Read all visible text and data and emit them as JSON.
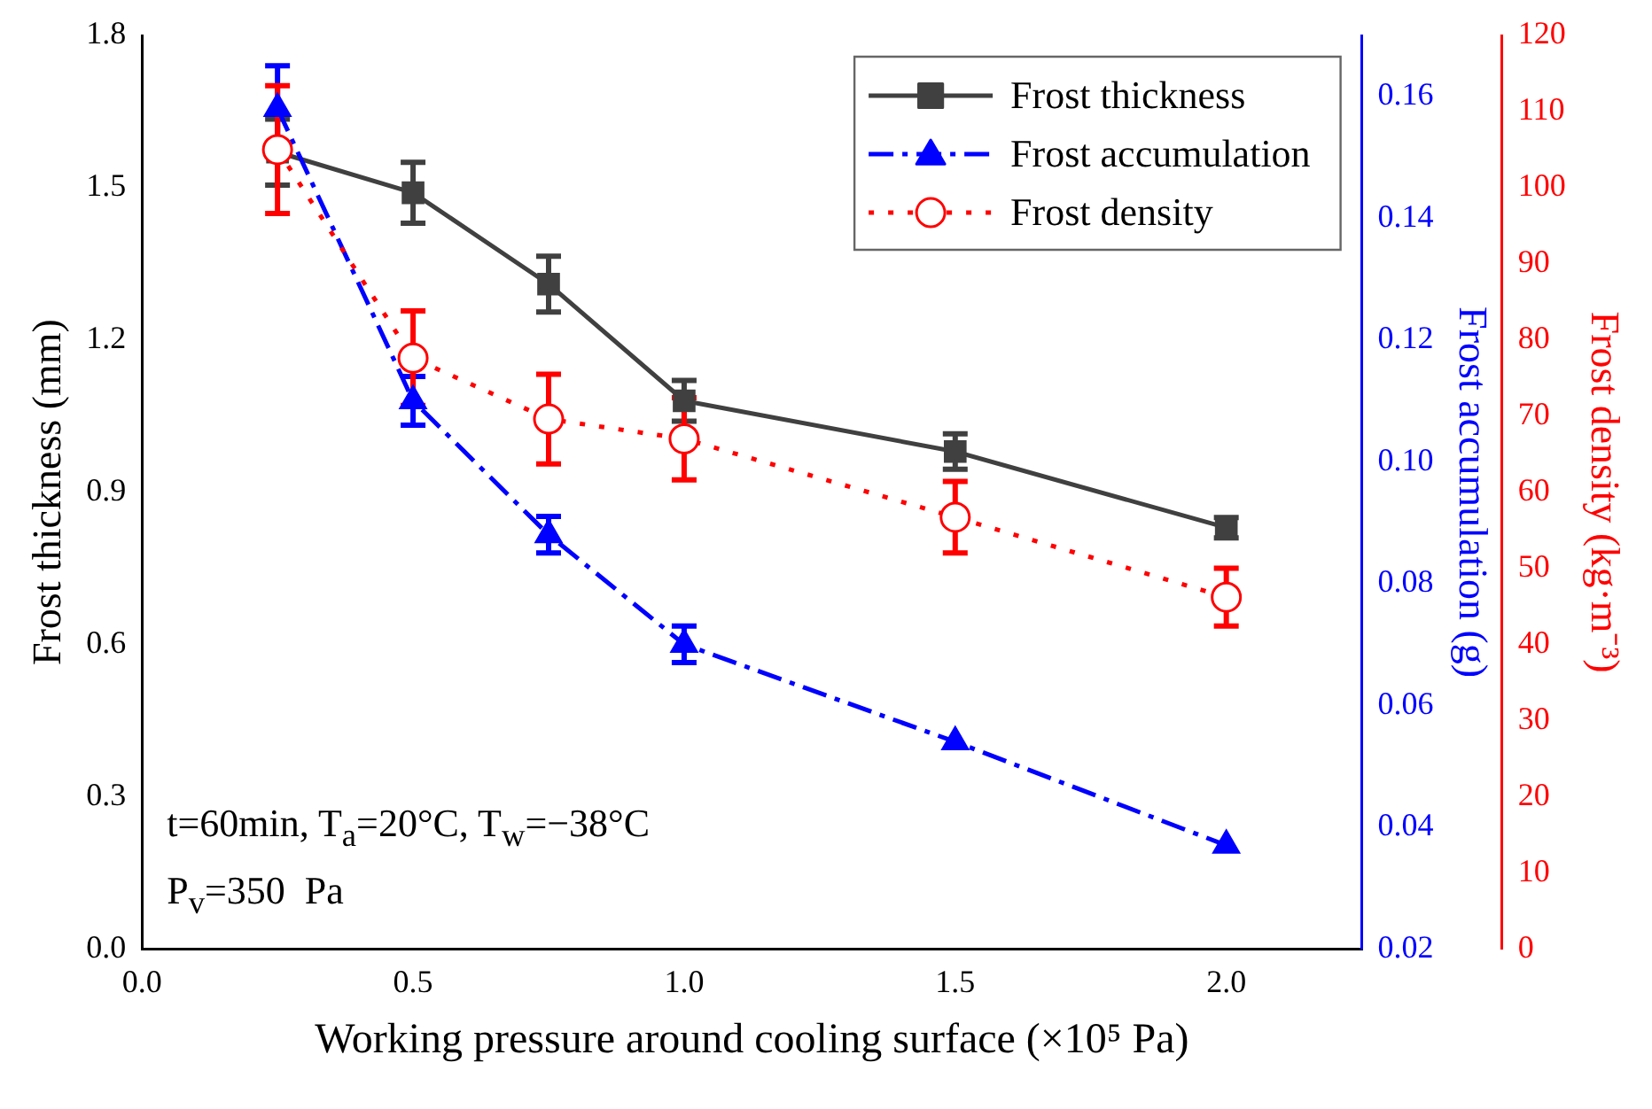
{
  "chart_data": {
    "type": "line",
    "xlabel": "Working pressure around cooling surface (×10⁵ Pa)",
    "ylabel": "Frost thickness (mm)",
    "y2label": "Frost accumulation (g)",
    "y3label": "Frost density (kg·m⁻³)",
    "x": [
      0.25,
      0.5,
      0.75,
      1.0,
      1.5,
      2.0
    ],
    "xlim": [
      0,
      2.25
    ],
    "xticks": [
      {
        "value": 0,
        "label": "0.0"
      },
      {
        "value": 0.5,
        "label": "0.5"
      },
      {
        "value": 1,
        "label": "1.0"
      },
      {
        "value": 1.5,
        "label": "1.5"
      },
      {
        "value": 2,
        "label": "2.0"
      }
    ],
    "ylim": [
      0,
      1.8
    ],
    "yticks": [
      {
        "value": 0,
        "label": "0.0"
      },
      {
        "value": 0.3,
        "label": "0.3"
      },
      {
        "value": 0.6,
        "label": "0.6"
      },
      {
        "value": 0.9,
        "label": "0.9"
      },
      {
        "value": 1.2,
        "label": "1.2"
      },
      {
        "value": 1.5,
        "label": "1.5"
      },
      {
        "value": 1.8,
        "label": "1.8"
      }
    ],
    "y2lim": [
      0.02,
      0.17
    ],
    "y2ticks": [
      {
        "value": 0.02,
        "label": "0.02"
      },
      {
        "value": 0.04,
        "label": "0.04"
      },
      {
        "value": 0.06,
        "label": "0.06"
      },
      {
        "value": 0.08,
        "label": "0.08"
      },
      {
        "value": 0.1,
        "label": "0.10"
      },
      {
        "value": 0.12,
        "label": "0.12"
      },
      {
        "value": 0.14,
        "label": "0.14"
      },
      {
        "value": 0.16,
        "label": "0.16"
      }
    ],
    "y3lim": [
      0,
      120
    ],
    "y3ticks": [
      0,
      10,
      20,
      30,
      40,
      50,
      60,
      70,
      80,
      90,
      100,
      110,
      120
    ],
    "series": [
      {
        "name": "Frost thickness",
        "color": "#404040",
        "marker": "square",
        "line_style": "solid",
        "values": [
          1.57,
          1.49,
          1.31,
          1.08,
          0.98,
          0.83
        ],
        "errors": [
          0.065,
          0.06,
          0.055,
          0.04,
          0.035,
          0.02
        ]
      },
      {
        "name": "Frost accumulation",
        "color": "#0000ff",
        "marker": "triangle",
        "line_style": "dashed",
        "axis": "y2",
        "values": [
          0.158,
          0.11,
          0.088,
          0.07,
          0.054,
          0.037
        ],
        "errors": [
          0.007,
          0.004,
          0.003,
          0.003,
          null,
          null
        ]
      },
      {
        "name": "Frost density",
        "color": "#ff0000",
        "marker": "circle",
        "line_style": "dotted",
        "axis": "y3",
        "values": [
          105,
          77.6,
          69.6,
          67,
          56.7,
          46.2
        ],
        "errors": [
          8.4,
          6.2,
          5.9,
          5.4,
          4.7,
          3.8
        ]
      }
    ],
    "legend": "top right",
    "annotations": [
      "t=60min, T$_{a}$=20°C, T$_{w}$=−38°C",
      "P$_{v}$=350  Pa"
    ]
  }
}
